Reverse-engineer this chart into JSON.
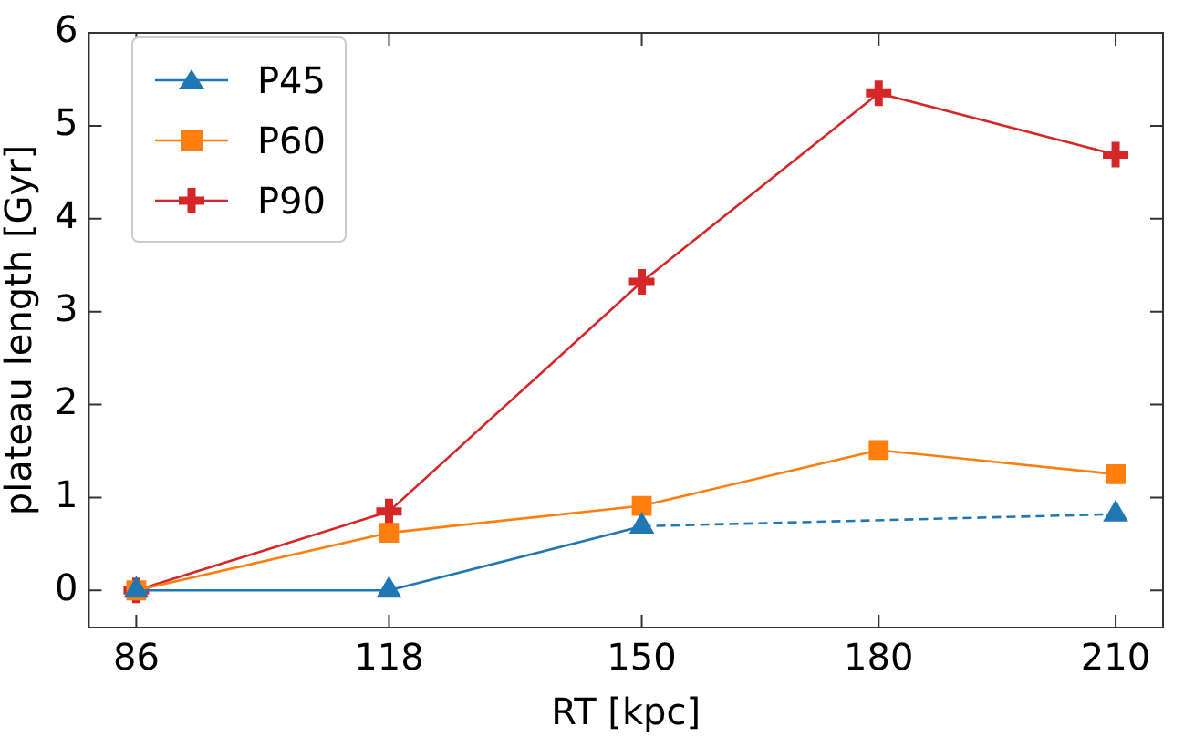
{
  "chart_data": {
    "type": "line",
    "xlabel": "RT [kpc]",
    "ylabel": "plateau length [Gyr]",
    "x": [
      86,
      118,
      150,
      180,
      210
    ],
    "xlim": [
      80,
      216
    ],
    "xticks": [
      86,
      118,
      150,
      180,
      210
    ],
    "ylim": [
      -0.4,
      6
    ],
    "yticks": [
      0,
      1,
      2,
      3,
      4,
      5,
      6
    ],
    "grid": false,
    "legend": "top left",
    "series": [
      {
        "name": "P45",
        "color": "#1f77b4",
        "marker": "triangle",
        "values": [
          0,
          0,
          0.69,
          null,
          0.82
        ]
      },
      {
        "name": "P60",
        "color": "#ff7f0e",
        "marker": "square",
        "values": [
          0,
          0.62,
          0.91,
          1.51,
          1.25
        ]
      },
      {
        "name": "P90",
        "color": "#d62728",
        "marker": "cross",
        "values": [
          0,
          0.85,
          3.32,
          5.35,
          4.69
        ]
      }
    ]
  }
}
